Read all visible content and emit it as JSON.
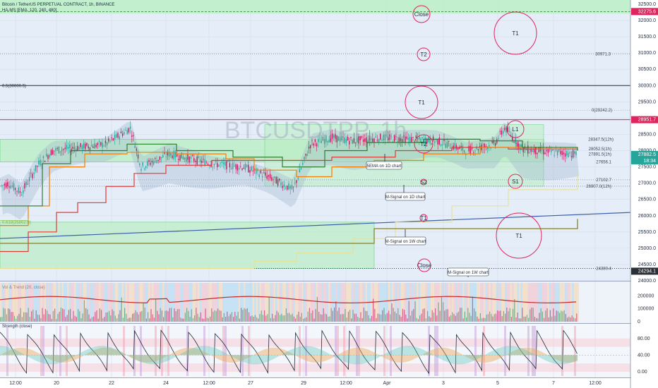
{
  "header": {
    "symbol_line": "Bitcoin / TetherUS PERPETUAL CONTRACT, 1h, BINANCE",
    "indicator_line": "HA-MS [EMA, 120, 240, 480]",
    "watermark": "BTCUSDTPP, 1h"
  },
  "colors": {
    "background_main": "#e4edf8",
    "green_zone": "#b9efc2",
    "green_zone_border": "#4ccf5f",
    "circle": "#e0245e",
    "price_tag": "#e0245e",
    "price_tag_current": "#26a69a",
    "ema_green": "#2e7d32",
    "ema_orange": "#f57c00",
    "ema_red": "#e53935",
    "ema_teal": "#26a69a",
    "trend_line": "#3b5ea8"
  },
  "price_axis": {
    "ticks": [
      "32500.0",
      "32000.0",
      "31500.0",
      "31000.0",
      "30500.0",
      "30000.0",
      "29500.0",
      "29000.0",
      "28500.0",
      "28000.0",
      "27500.0",
      "27000.0",
      "26500.0",
      "26000.0",
      "25500.0",
      "25000.0",
      "24500.0",
      "24000.0"
    ],
    "tag_top": "32275.6",
    "tag_mid": "28951.7",
    "tag_current": "27882.5",
    "tag_current_time": "18:34",
    "tag_bottom": "24294.1"
  },
  "chart_data": [
    {
      "type": "candlestick",
      "title": "Bitcoin / TetherUS PERPETUAL CONTRACT, 1h, BINANCE",
      "ylim": [
        24000,
        32500
      ],
      "x_tick_labels": [
        "12:00",
        "20",
        "22",
        "24",
        "12:00",
        "27",
        "29",
        "12:00",
        "Apr",
        "3",
        "5",
        "7",
        "12:00"
      ],
      "price_points": [
        {
          "label": "Close",
          "value": 32275.6
        },
        {
          "label": "T1",
          "value": 31500
        },
        {
          "label": "T2",
          "value": 30971.3
        },
        {
          "label": "0.5(30000.5)",
          "value": 30000.5
        },
        {
          "label": "T1",
          "value": 29242.2
        },
        {
          "label": "L1",
          "value": 28500
        },
        {
          "label": "S1",
          "value": 26907.0
        },
        {
          "label": "T1",
          "value": 25000
        },
        {
          "label": "Close",
          "value": 24380.4
        }
      ],
      "level_labels": [
        "30971.3",
        "0(29242.2)",
        "28347.5(12h)",
        "28052.5(1h)",
        "27891.5(1h)",
        "27656.1",
        "27102.7",
        "26907.0(12h)",
        "24380.4",
        "0.5(30000.5)",
        "0.618(25802.9)"
      ],
      "annotations": [
        "5EMA on 1D chart",
        "M-Signal on 1D chart",
        "M-Signal on 1W chart",
        "M-Signal on 1W chart"
      ],
      "circle_labels": [
        "Close",
        "T1",
        "T2",
        "T1",
        "L1",
        "T2",
        "S1",
        "S2",
        "T1",
        "T1",
        "Close"
      ]
    },
    {
      "type": "area",
      "title": "Vol & Trend (20, close)",
      "ylim": [
        0,
        300000
      ],
      "y_tick_labels": [
        "200000",
        "100000",
        "0"
      ]
    },
    {
      "type": "area",
      "title": "Strength (close)",
      "ylim": [
        -10,
        110
      ],
      "y_tick_labels": [
        "80.00",
        "40.00",
        "0.00"
      ]
    }
  ]
}
